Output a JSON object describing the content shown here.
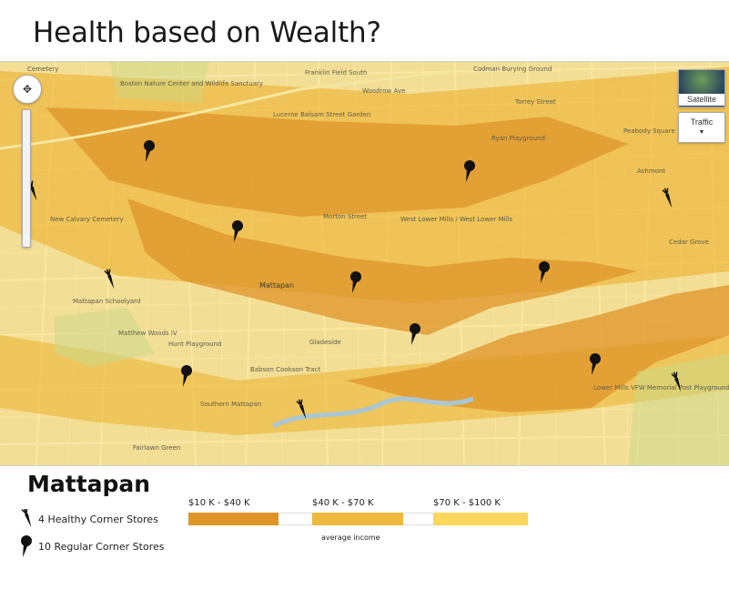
{
  "title": "Health based on Wealth?",
  "map": {
    "controls": {
      "satellite_label": "Satellite",
      "traffic_label": "Traffic"
    },
    "labels": [
      {
        "text": "Cemetery",
        "id": "cemetery"
      },
      {
        "text": "Boston Nature Center and Wildlife Sanctuary",
        "id": "nature-center"
      },
      {
        "text": "Franklin Field South",
        "id": "franklin-field"
      },
      {
        "text": "Codman Burying Ground",
        "id": "codman"
      },
      {
        "text": "Woodrow Ave",
        "id": "woodrow"
      },
      {
        "text": "Torrey Street",
        "id": "torrey"
      },
      {
        "text": "Lucerne Balsam Street Garden",
        "id": "lucerne"
      },
      {
        "text": "Ryan Playground",
        "id": "ryan"
      },
      {
        "text": "Peabody Square",
        "id": "peabody"
      },
      {
        "text": "Ashmont",
        "id": "ashmont"
      },
      {
        "text": "New Calvary Cemetery",
        "id": "new-calvary"
      },
      {
        "text": "Morton Street",
        "id": "morton-street"
      },
      {
        "text": "West Lower Mills / West Lower Mills",
        "id": "west-lower"
      },
      {
        "text": "Mattapan",
        "id": "mattapan"
      },
      {
        "text": "Mattapan Schoolyard",
        "id": "schoolyard"
      },
      {
        "text": "Matthew Woods IV",
        "id": "woods"
      },
      {
        "text": "Hunt Playground",
        "id": "hunt"
      },
      {
        "text": "Southern Mattapan",
        "id": "southern"
      },
      {
        "text": "Babson Cookson Tract",
        "id": "babson"
      },
      {
        "text": "Fairlawn Green",
        "id": "fairlawn"
      },
      {
        "text": "Lower Mills VFW Memorial Post Playground",
        "id": "vfw"
      },
      {
        "text": "Gladeside",
        "id": "gladeside"
      },
      {
        "text": "Cedar Grove",
        "id": "cedar"
      }
    ]
  },
  "legend": {
    "neighborhood": "Mattapan",
    "healthy_stores": "4 Healthy Corner Stores",
    "regular_stores": "10 Regular Corner Stores",
    "income_ranges": [
      {
        "label": "$10 K - $40 K",
        "color": "#df9428"
      },
      {
        "label": "$40 K - $70 K",
        "color": "#edb83c"
      },
      {
        "label": "$70 K - $100 K",
        "color": "#fbd75c"
      }
    ],
    "income_caption": "average income"
  },
  "colors": {
    "low_income": "#df9428",
    "mid_income": "#edb83c",
    "high_income": "#fbd75c",
    "marker": "#111111"
  }
}
